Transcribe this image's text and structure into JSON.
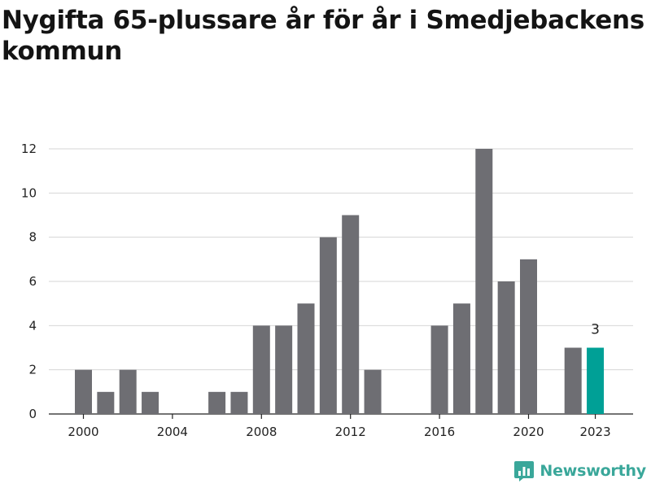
{
  "chart_data": {
    "type": "bar",
    "title": "Nygifta 65-plussare år för år i Smedjebackens kommun",
    "x": [
      2000,
      2001,
      2002,
      2003,
      2004,
      2005,
      2006,
      2007,
      2008,
      2009,
      2010,
      2011,
      2012,
      2013,
      2014,
      2015,
      2016,
      2017,
      2018,
      2019,
      2020,
      2021,
      2022,
      2023
    ],
    "values": [
      2,
      1,
      2,
      1,
      0,
      0,
      1,
      1,
      4,
      4,
      5,
      8,
      9,
      2,
      0,
      0,
      4,
      5,
      12,
      6,
      7,
      0,
      3,
      3
    ],
    "x_tick_labels": [
      "2000",
      "2004",
      "2008",
      "2012",
      "2016",
      "2020",
      "2023"
    ],
    "y_ticks": [
      0,
      2,
      4,
      6,
      8,
      10,
      12
    ],
    "ylim": [
      0,
      12
    ],
    "highlight_label": "3",
    "xlabel": "",
    "ylabel": "",
    "grid": true,
    "colors": {
      "bar": "#6e6e73",
      "highlight": "#00a096",
      "grid": "#d6d6d6",
      "axis": "#222222"
    }
  },
  "brand": {
    "name": "Newsworthy",
    "icon": "newsworthy-logo-icon",
    "color": "#3aa79a"
  }
}
